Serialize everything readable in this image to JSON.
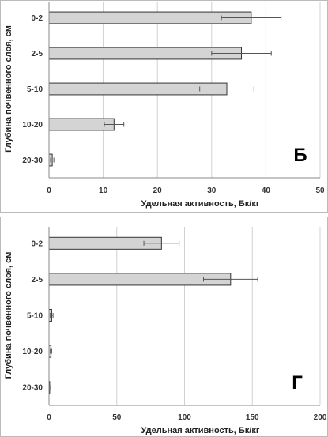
{
  "chart_data": [
    {
      "type": "bar",
      "orientation": "horizontal",
      "panel_label": "Б",
      "categories": [
        "0-2",
        "2-5",
        "5-10",
        "10-20",
        "20-30"
      ],
      "values": [
        37.3,
        35.5,
        32.8,
        12.0,
        0.6
      ],
      "errors": [
        5.5,
        5.5,
        5.0,
        1.8,
        0.3
      ],
      "xlabel": "Удельная активность, Бк/кг",
      "ylabel": "Глубина почвенного слоя, см",
      "xlim": [
        0,
        50
      ],
      "xticks": [
        0,
        10,
        20,
        30,
        40,
        50
      ],
      "grid": true,
      "bar_color": "#d4d4d4"
    },
    {
      "type": "bar",
      "orientation": "horizontal",
      "panel_label": "Г",
      "categories": [
        "0-2",
        "2-5",
        "5-10",
        "10-20",
        "20-30"
      ],
      "values": [
        83,
        134,
        2,
        1.5,
        0.5
      ],
      "errors": [
        13,
        20,
        1,
        0.5,
        0.2
      ],
      "xlabel": "Удельная активность, Бк/кг",
      "ylabel": "Глубина почвенного слоя, см",
      "xlim": [
        0,
        200
      ],
      "xticks": [
        0,
        50,
        100,
        150,
        200
      ],
      "grid": true,
      "bar_color": "#d4d4d4"
    }
  ]
}
